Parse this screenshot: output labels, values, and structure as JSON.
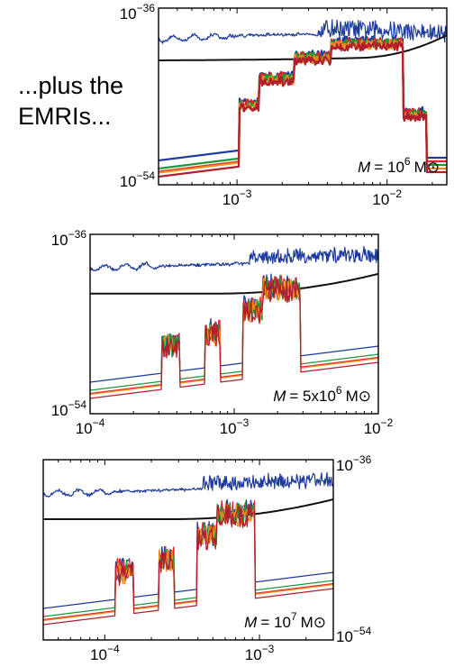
{
  "caption": [
    "...plus the",
    "EMRIs..."
  ],
  "colors": {
    "noise": "#1f3c9c",
    "sensitivity": "#111111",
    "series": [
      "#1f3c9c",
      "#e0242a",
      "#1b9a3a",
      "#f08c1a",
      "#b01f2f"
    ]
  },
  "chart_data": [
    {
      "type": "line",
      "title": "",
      "mass_label": {
        "prefix": "M",
        "value": "= 10",
        "exp": "6",
        "unit": "M⊙"
      },
      "xscale": "log",
      "xlim": [
        0.0003,
        0.025
      ],
      "yscale": "log",
      "ylim": [
        1e-54,
        1e-36
      ],
      "xticks": [
        {
          "base": "10",
          "exp": "−3",
          "value": 0.001
        },
        {
          "base": "10",
          "exp": "−2",
          "value": 0.01
        }
      ],
      "yticks": [
        {
          "base": "10",
          "exp": "−36",
          "value": 1e-36
        },
        {
          "base": "10",
          "exp": "−54",
          "value": 1e-54
        }
      ],
      "ytick_side": "left",
      "legend": "none",
      "grid": false
    },
    {
      "type": "line",
      "title": "",
      "mass_label": {
        "prefix": "M",
        "value": "= 5x10",
        "exp": "6",
        "unit": "M⊙"
      },
      "xscale": "log",
      "xlim": [
        0.0001,
        0.01
      ],
      "yscale": "log",
      "ylim": [
        1e-54,
        1e-36
      ],
      "xticks": [
        {
          "base": "10",
          "exp": "−4",
          "value": 0.0001
        },
        {
          "base": "10",
          "exp": "−3",
          "value": 0.001
        },
        {
          "base": "10",
          "exp": "−2",
          "value": 0.01
        }
      ],
      "yticks": [
        {
          "base": "10",
          "exp": "−36",
          "value": 1e-36
        },
        {
          "base": "10",
          "exp": "−54",
          "value": 1e-54
        }
      ],
      "ytick_side": "left",
      "legend": "none",
      "grid": false
    },
    {
      "type": "line",
      "title": "",
      "mass_label": {
        "prefix": "M",
        "value": "= 10",
        "exp": "7",
        "unit": "M⊙"
      },
      "xscale": "log",
      "xlim": [
        4e-05,
        0.003
      ],
      "yscale": "log",
      "ylim": [
        1e-54,
        1e-36
      ],
      "xticks": [
        {
          "base": "10",
          "exp": "−4",
          "value": 0.0001
        },
        {
          "base": "10",
          "exp": "−3",
          "value": 0.001
        }
      ],
      "yticks": [
        {
          "base": "10",
          "exp": "−36",
          "value": 1e-36
        },
        {
          "base": "10",
          "exp": "−54",
          "value": 1e-54
        }
      ],
      "ytick_side": "right",
      "legend": "none",
      "grid": false
    }
  ]
}
